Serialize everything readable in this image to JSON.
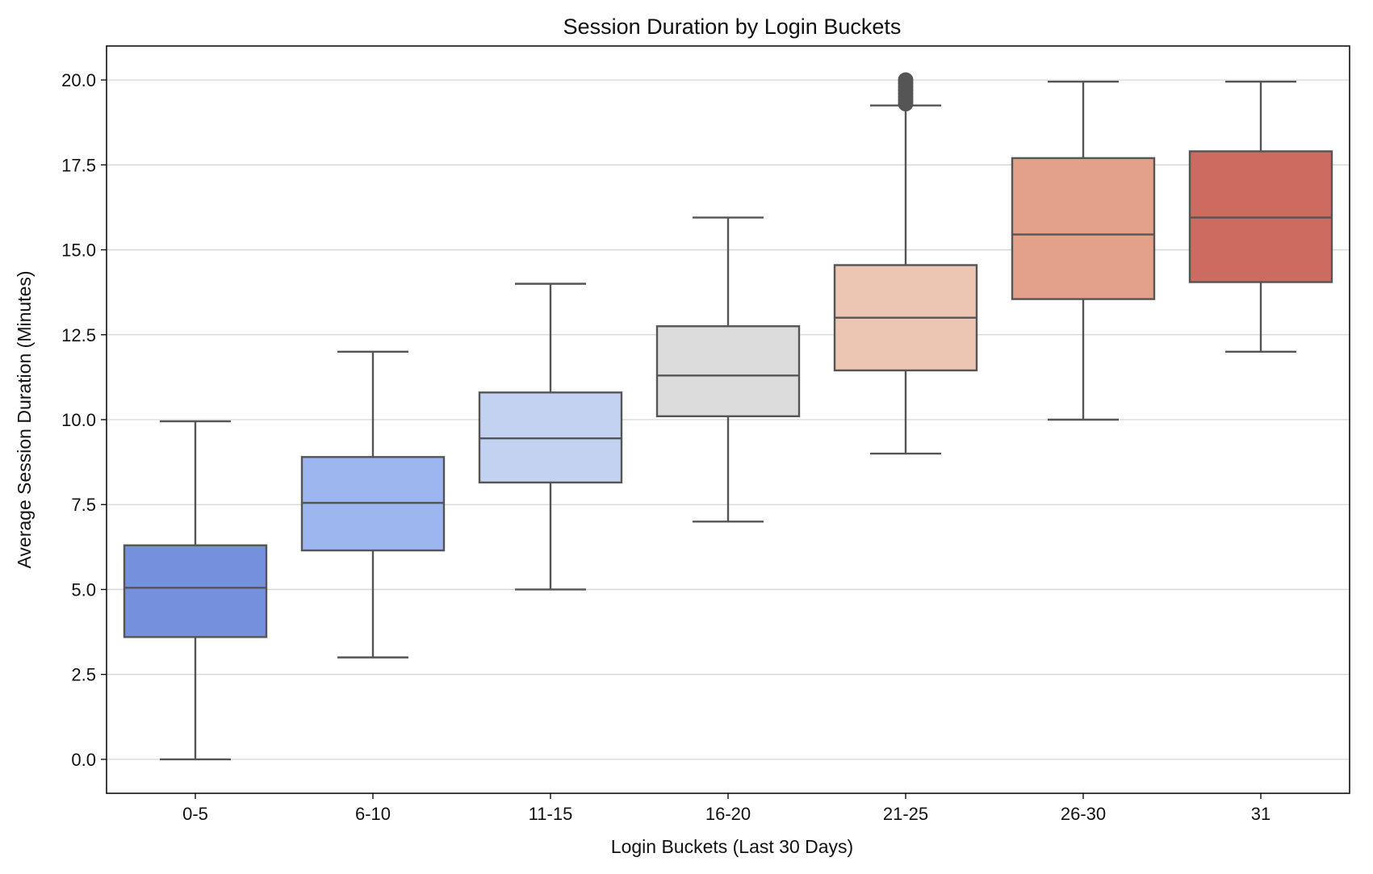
{
  "chart_data": {
    "type": "box",
    "title": "Session Duration by Login Buckets",
    "xlabel": "Login Buckets (Last 30 Days)",
    "ylabel": "Average Session Duration (Minutes)",
    "ylim": [
      -1.0,
      21.0
    ],
    "yticks": [
      0.0,
      2.5,
      5.0,
      7.5,
      10.0,
      12.5,
      15.0,
      17.5,
      20.0
    ],
    "ytick_labels": [
      "0.0",
      "2.5",
      "5.0",
      "7.5",
      "10.0",
      "12.5",
      "15.0",
      "17.5",
      "20.0"
    ],
    "grid": "horizontal",
    "categories": [
      "0-5",
      "6-10",
      "11-15",
      "16-20",
      "21-25",
      "26-30",
      "31"
    ],
    "boxes": [
      {
        "category": "0-5",
        "whisker_low": 0.0,
        "q1": 3.6,
        "median": 5.05,
        "q3": 6.3,
        "whisker_high": 9.95,
        "color": "#7590dd",
        "outliers": []
      },
      {
        "category": "6-10",
        "whisker_low": 3.0,
        "q1": 6.15,
        "median": 7.55,
        "q3": 8.9,
        "whisker_high": 12.0,
        "color": "#9db6f0",
        "outliers": []
      },
      {
        "category": "11-15",
        "whisker_low": 5.0,
        "q1": 8.15,
        "median": 9.45,
        "q3": 10.8,
        "whisker_high": 14.0,
        "color": "#c2d2f0",
        "outliers": []
      },
      {
        "category": "16-20",
        "whisker_low": 7.0,
        "q1": 10.1,
        "median": 11.3,
        "q3": 12.75,
        "whisker_high": 15.95,
        "color": "#dcdcdc",
        "outliers": []
      },
      {
        "category": "21-25",
        "whisker_low": 9.0,
        "q1": 11.45,
        "median": 13.0,
        "q3": 14.55,
        "whisker_high": 19.25,
        "color": "#edc5b3",
        "outliers": [
          19.3,
          19.4,
          19.5,
          19.6,
          19.7,
          19.8,
          19.9,
          20.0
        ]
      },
      {
        "category": "26-30",
        "whisker_low": 10.0,
        "q1": 13.55,
        "median": 15.45,
        "q3": 17.7,
        "whisker_high": 19.95,
        "color": "#e4a189",
        "outliers": []
      },
      {
        "category": "31",
        "whisker_low": 12.0,
        "q1": 14.05,
        "median": 15.95,
        "q3": 17.9,
        "whisker_high": 19.95,
        "color": "#cc6b5f",
        "outliers": []
      }
    ]
  }
}
